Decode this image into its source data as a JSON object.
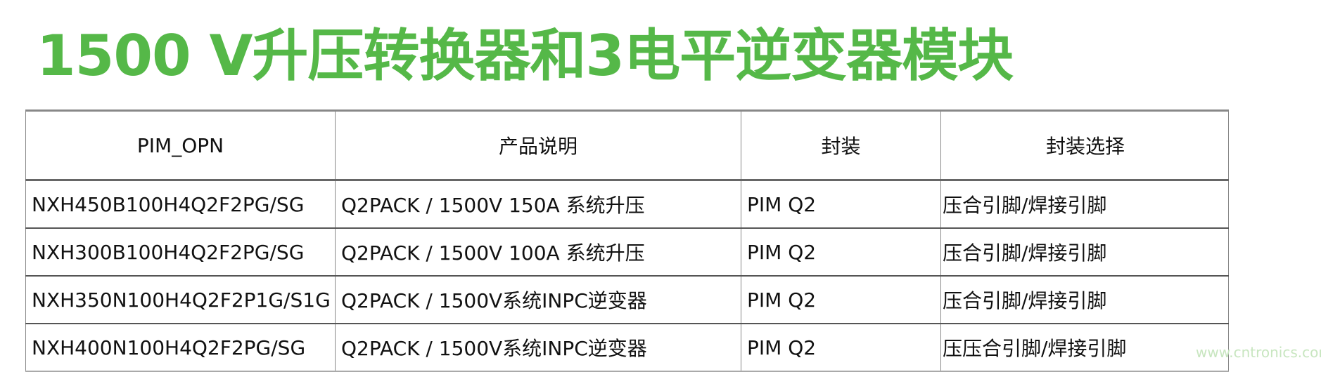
{
  "title": "1500 V升压转换器和3电平逆变器模块",
  "table": {
    "headers": [
      "PIM_OPN",
      "产品说明",
      "封装",
      "封装选择"
    ],
    "rows": [
      [
        "NXH450B100H4Q2F2PG/SG",
        "Q2PACK / 1500V 150A 系统升压",
        "PIM Q2",
        "压合引脚/焊接引脚"
      ],
      [
        "NXH300B100H4Q2F2PG/SG",
        "Q2PACK / 1500V 100A 系统升压",
        "PIM Q2",
        "压合引脚/焊接引脚"
      ],
      [
        "NXH350N100H4Q2F2P1G/S1G",
        "Q2PACK / 1500V系统INPC逆变器",
        "PIM Q2",
        "压合引脚/焊接引脚"
      ],
      [
        "NXH400N100H4Q2F2PG/SG",
        "Q2PACK / 1500V系统INPC逆变器",
        "PIM Q2",
        "压压合引脚/焊接引脚"
      ]
    ]
  },
  "watermark": "www.cntronics.com",
  "colors": {
    "title": "#55b848"
  }
}
